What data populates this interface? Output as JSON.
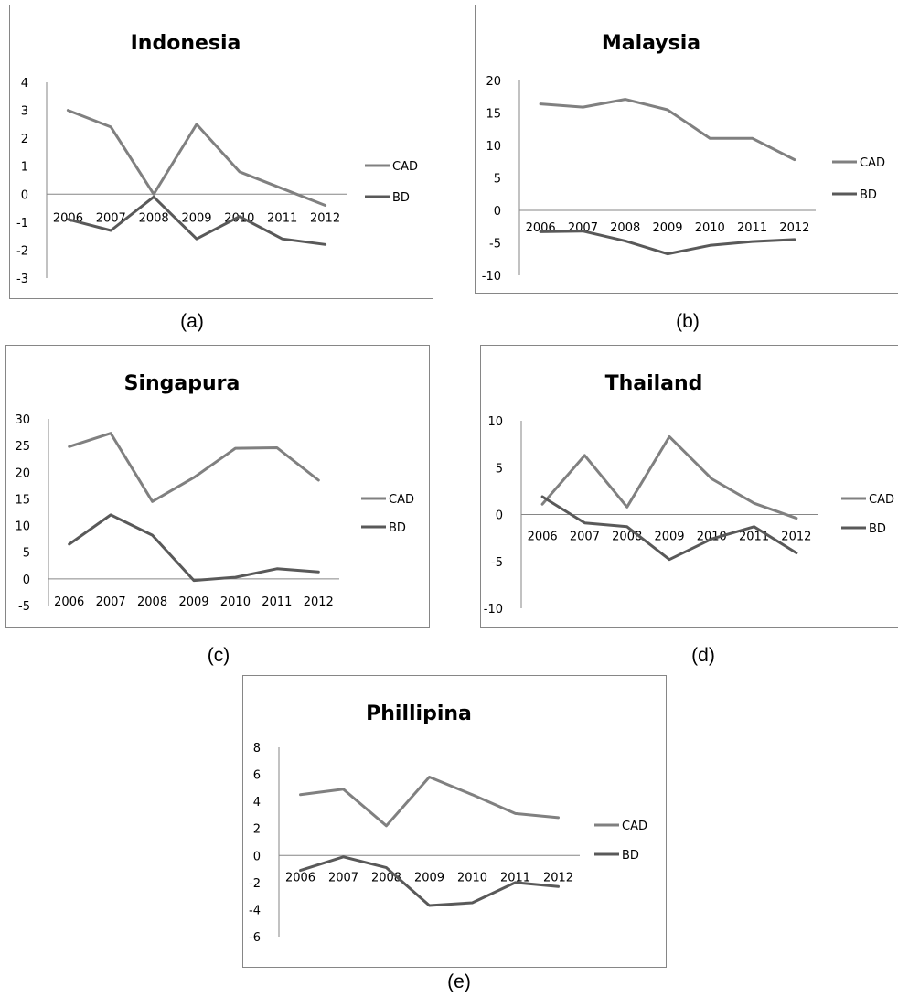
{
  "chart_data": [
    {
      "type": "line",
      "title": "Indonesia",
      "caption": "(a)",
      "categories": [
        "2006",
        "2007",
        "2008",
        "2009",
        "2010",
        "2011",
        "2012"
      ],
      "yticks": [
        "-3",
        "-2",
        "-1",
        "0",
        "1",
        "2",
        "3",
        "4"
      ],
      "ylim": [
        -3,
        4
      ],
      "legend": "right",
      "series": [
        {
          "name": "CAD",
          "color": "#808080",
          "values": [
            3.0,
            2.4,
            0.0,
            2.5,
            0.8,
            0.2,
            -0.4
          ]
        },
        {
          "name": "BD",
          "color": "#595959",
          "values": [
            -0.9,
            -1.3,
            -0.1,
            -1.6,
            -0.8,
            -1.6,
            -1.8
          ]
        }
      ]
    },
    {
      "type": "line",
      "title": "Malaysia",
      "caption": "(b)",
      "categories": [
        "2006",
        "2007",
        "2008",
        "2009",
        "2010",
        "2011",
        "2012"
      ],
      "yticks": [
        "-10",
        "-5",
        "0",
        "5",
        "10",
        "15",
        "20"
      ],
      "ylim": [
        -10,
        20
      ],
      "legend": "right",
      "series": [
        {
          "name": "CAD",
          "color": "#808080",
          "values": [
            16.4,
            15.9,
            17.1,
            15.5,
            11.1,
            11.1,
            7.8
          ]
        },
        {
          "name": "BD",
          "color": "#595959",
          "values": [
            -3.3,
            -3.2,
            -4.7,
            -6.7,
            -5.4,
            -4.8,
            -4.5
          ]
        }
      ]
    },
    {
      "type": "line",
      "title": "Singapura",
      "caption": "(c)",
      "categories": [
        "2006",
        "2007",
        "2008",
        "2009",
        "2010",
        "2011",
        "2012"
      ],
      "yticks": [
        "-5",
        "0",
        "5",
        "10",
        "15",
        "20",
        "25",
        "30"
      ],
      "ylim": [
        -5,
        30
      ],
      "legend": "right",
      "series": [
        {
          "name": "CAD",
          "color": "#808080",
          "values": [
            24.8,
            27.3,
            14.5,
            19.0,
            24.5,
            24.6,
            18.5
          ]
        },
        {
          "name": "BD",
          "color": "#595959",
          "values": [
            6.5,
            12.0,
            8.2,
            -0.3,
            0.3,
            1.9,
            1.3
          ]
        }
      ]
    },
    {
      "type": "line",
      "title": "Thailand",
      "caption": "(d)",
      "categories": [
        "2006",
        "2007",
        "2008",
        "2009",
        "2010",
        "2011",
        "2012"
      ],
      "yticks": [
        "-10",
        "-5",
        "0",
        "5",
        "10"
      ],
      "ylim": [
        -10,
        10
      ],
      "legend": "right",
      "series": [
        {
          "name": "CAD",
          "color": "#808080",
          "values": [
            1.1,
            6.3,
            0.8,
            8.3,
            3.8,
            1.2,
            -0.4
          ]
        },
        {
          "name": "BD",
          "color": "#595959",
          "values": [
            1.9,
            -0.9,
            -1.3,
            -4.8,
            -2.6,
            -1.3,
            -4.1
          ]
        }
      ]
    },
    {
      "type": "line",
      "title": "Phillipina",
      "caption": "(e)",
      "categories": [
        "2006",
        "2007",
        "2008",
        "2009",
        "2010",
        "2011",
        "2012"
      ],
      "yticks": [
        "-6",
        "-4",
        "-2",
        "0",
        "2",
        "4",
        "6",
        "8"
      ],
      "ylim": [
        -6,
        8
      ],
      "legend": "right",
      "series": [
        {
          "name": "CAD",
          "color": "#808080",
          "values": [
            4.5,
            4.9,
            2.2,
            5.8,
            4.5,
            3.1,
            2.8
          ]
        },
        {
          "name": "BD",
          "color": "#595959",
          "values": [
            -1.1,
            -0.1,
            -0.9,
            -3.7,
            -3.5,
            -2.0,
            -2.3
          ]
        }
      ]
    }
  ]
}
